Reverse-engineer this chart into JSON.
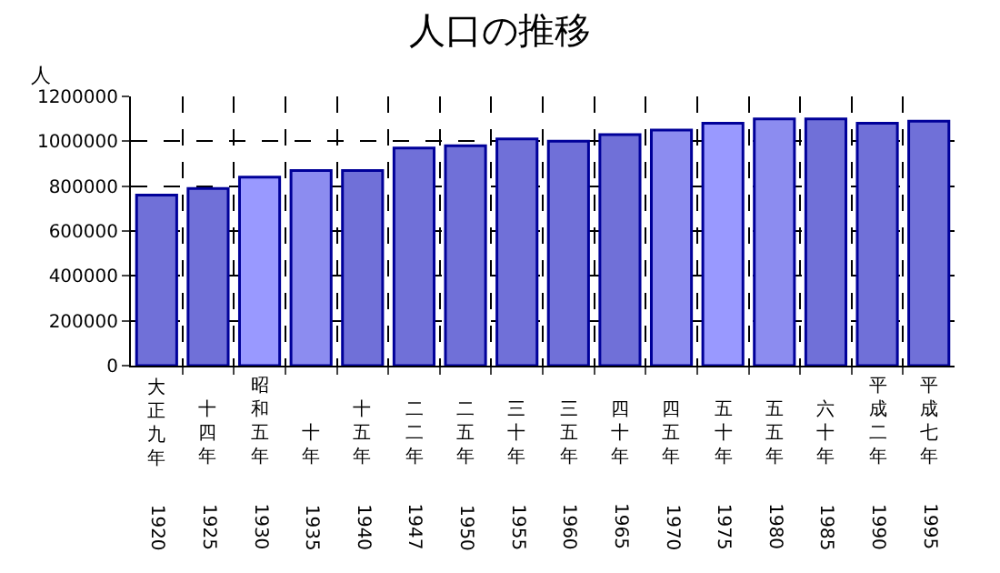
{
  "chart_data": {
    "type": "bar",
    "title": "人口の推移",
    "ylabel": "人",
    "categories": [
      "大正九年 1920",
      "十四年 1925",
      "昭和五年 1930",
      "十年 1935",
      "十五年 1940",
      "二二年 1947",
      "二五年 1950",
      "三十年 1955",
      "三五年 1960",
      "四十年 1965",
      "四五年 1970",
      "五十年 1975",
      "五五年 1980",
      "六十年 1985",
      "平成二年 1990",
      "平成七年 1995"
    ],
    "values": [
      760000,
      790000,
      840000,
      870000,
      870000,
      970000,
      980000,
      1010000,
      1000000,
      1030000,
      1050000,
      1080000,
      1100000,
      1100000,
      1080000,
      1090000
    ],
    "colors": [
      "#7070d8",
      "#7070d8",
      "#9999ff",
      "#8c8cf0",
      "#7070d8",
      "#7070d8",
      "#7070d8",
      "#7070d8",
      "#7070d8",
      "#7070d8",
      "#8c8cf0",
      "#9999ff",
      "#8c8cf0",
      "#7070d8",
      "#7070d8",
      "#7070d8"
    ],
    "ylim": [
      0,
      1200000
    ],
    "yticks": [
      0,
      200000,
      400000,
      600000,
      800000,
      1000000,
      1200000
    ],
    "grid": true
  }
}
